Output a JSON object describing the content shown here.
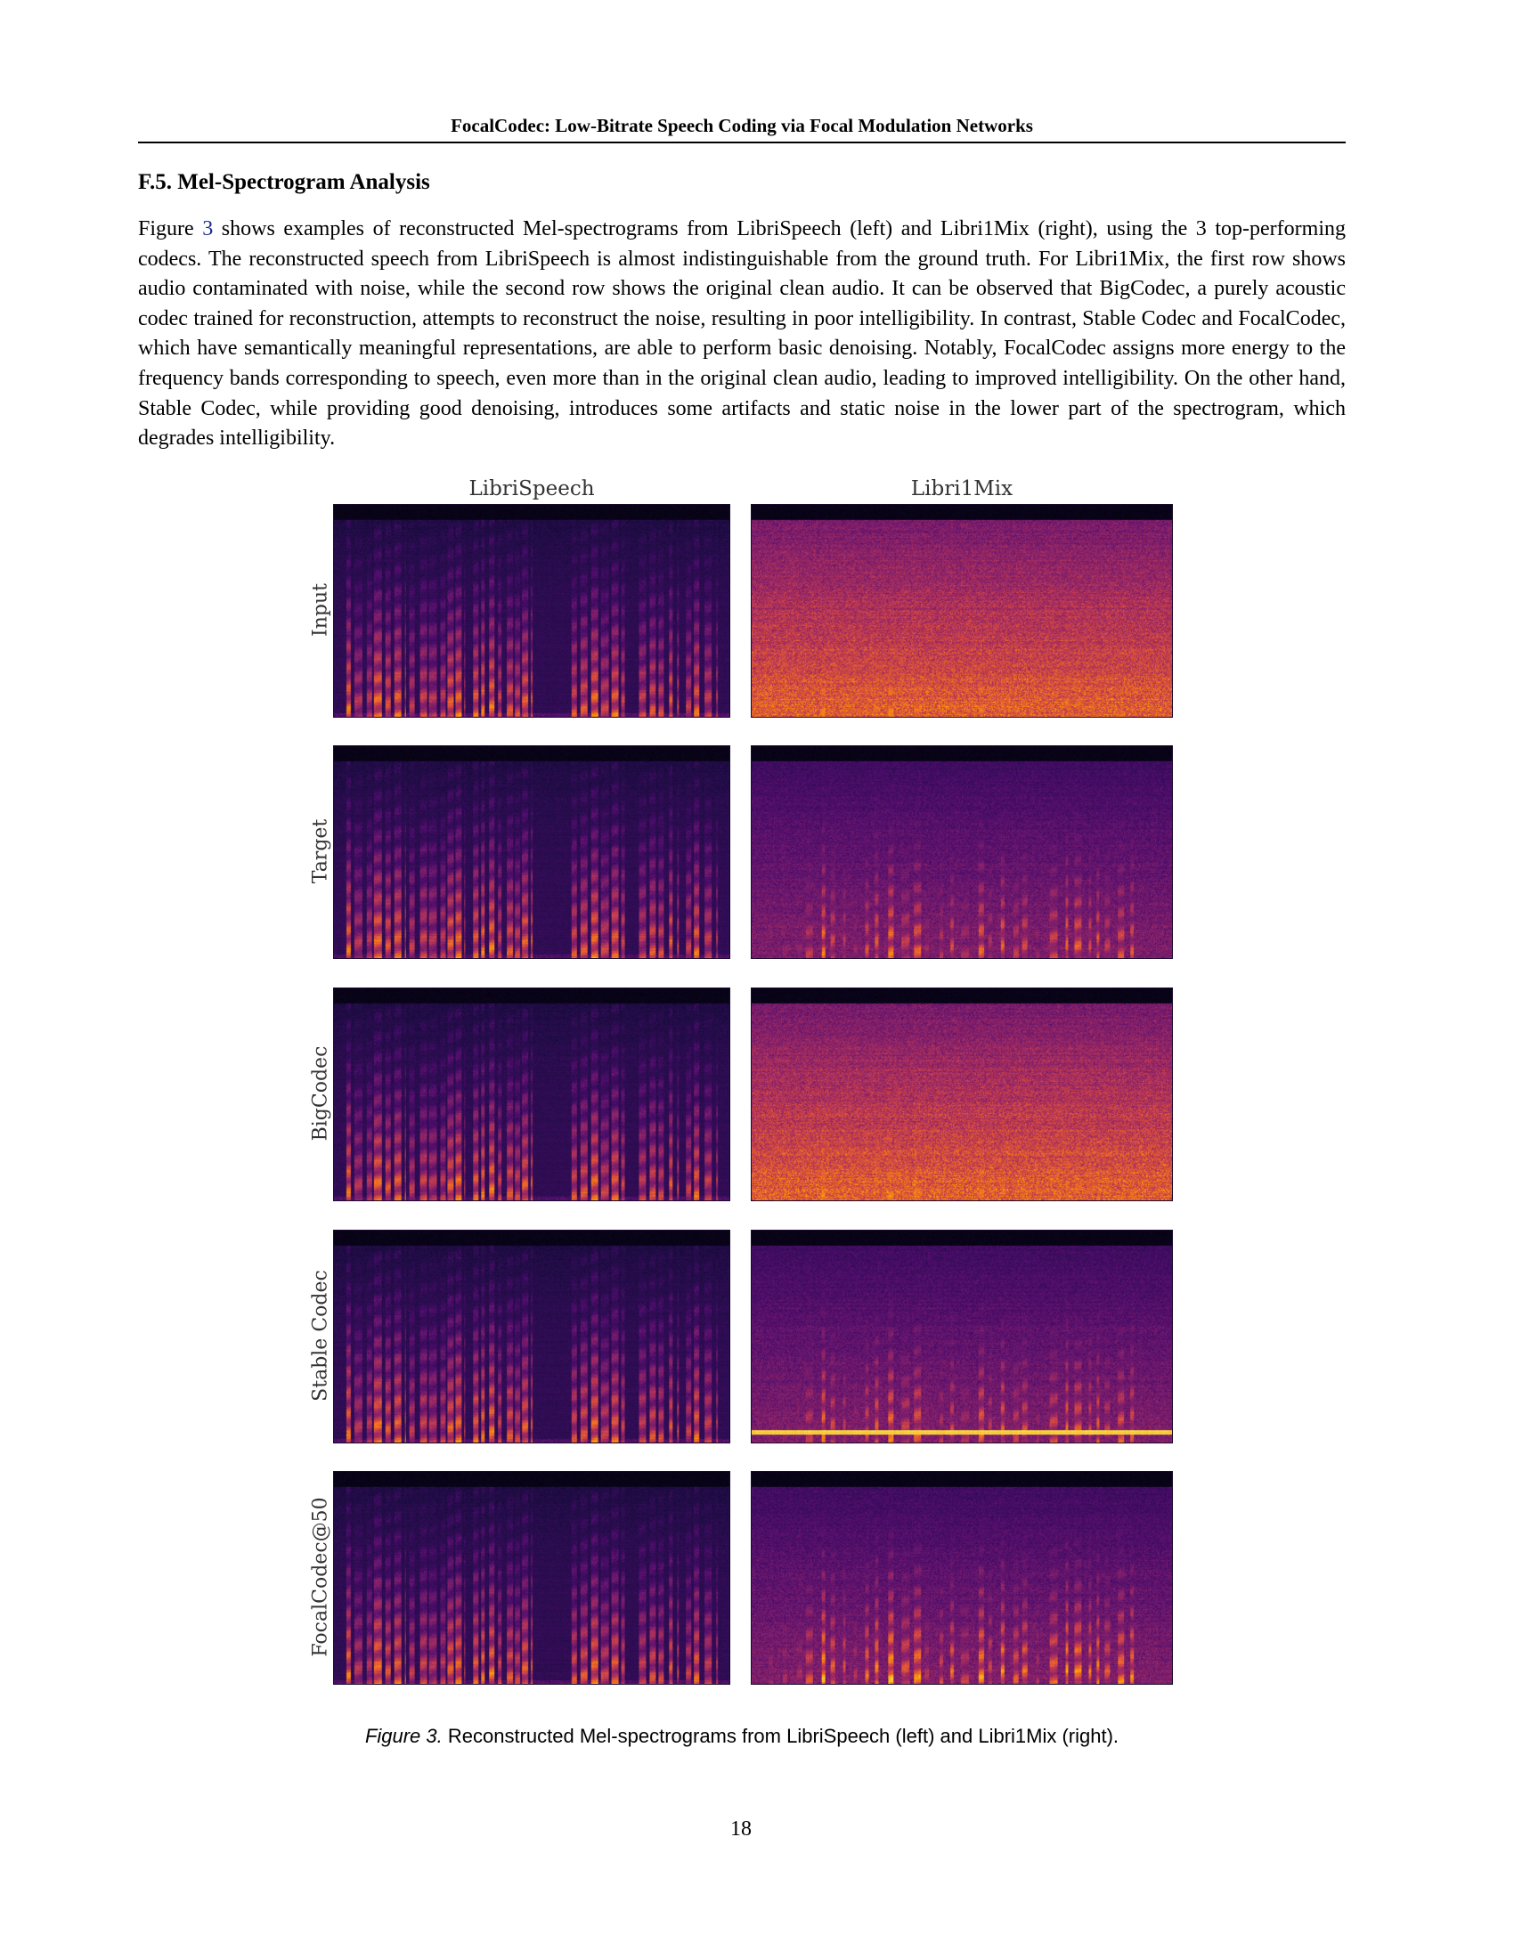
{
  "running_header": "FocalCodec: Low-Bitrate Speech Coding via Focal Modulation Networks",
  "section": {
    "heading": "F.5. Mel-Spectrogram Analysis"
  },
  "paragraph": {
    "lead": "Figure ",
    "fig_ref": "3",
    "rest": " shows examples of reconstructed Mel-spectrograms from LibriSpeech (left) and Libri1Mix (right), using the 3 top-performing codecs. The reconstructed speech from LibriSpeech is almost indistinguishable from the ground truth. For Libri1Mix, the first row shows audio contaminated with noise, while the second row shows the original clean audio. It can be observed that BigCodec, a purely acoustic codec trained for reconstruction, attempts to reconstruct the noise, resulting in poor intelligibility. In contrast, Stable Codec and FocalCodec, which have semantically meaningful representations, are able to perform basic denoising. Notably, FocalCodec assigns more energy to the frequency bands corresponding to speech, even more than in the original clean audio, leading to improved intelligibility. On the other hand, Stable Codec, while providing good denoising, introduces some artifacts and static noise in the lower part of the spectrogram, which degrades intelligibility."
  },
  "figure": {
    "columns": [
      "LibriSpeech",
      "Libri1Mix"
    ],
    "rows": [
      "Input",
      "Target",
      "BigCodec",
      "Stable Codec",
      "FocalCodec@50"
    ],
    "colormap": [
      "#000004",
      "#1b0c41",
      "#4a0c6b",
      "#781c6d",
      "#a52c60",
      "#cf4446",
      "#ed6925",
      "#fb9b06",
      "#f7d13d",
      "#fcffa4"
    ]
  },
  "caption": {
    "label": "Figure 3.",
    "text": " Reconstructed Mel-spectrograms from LibriSpeech (left) and Libri1Mix (right)."
  },
  "page_number": "18"
}
